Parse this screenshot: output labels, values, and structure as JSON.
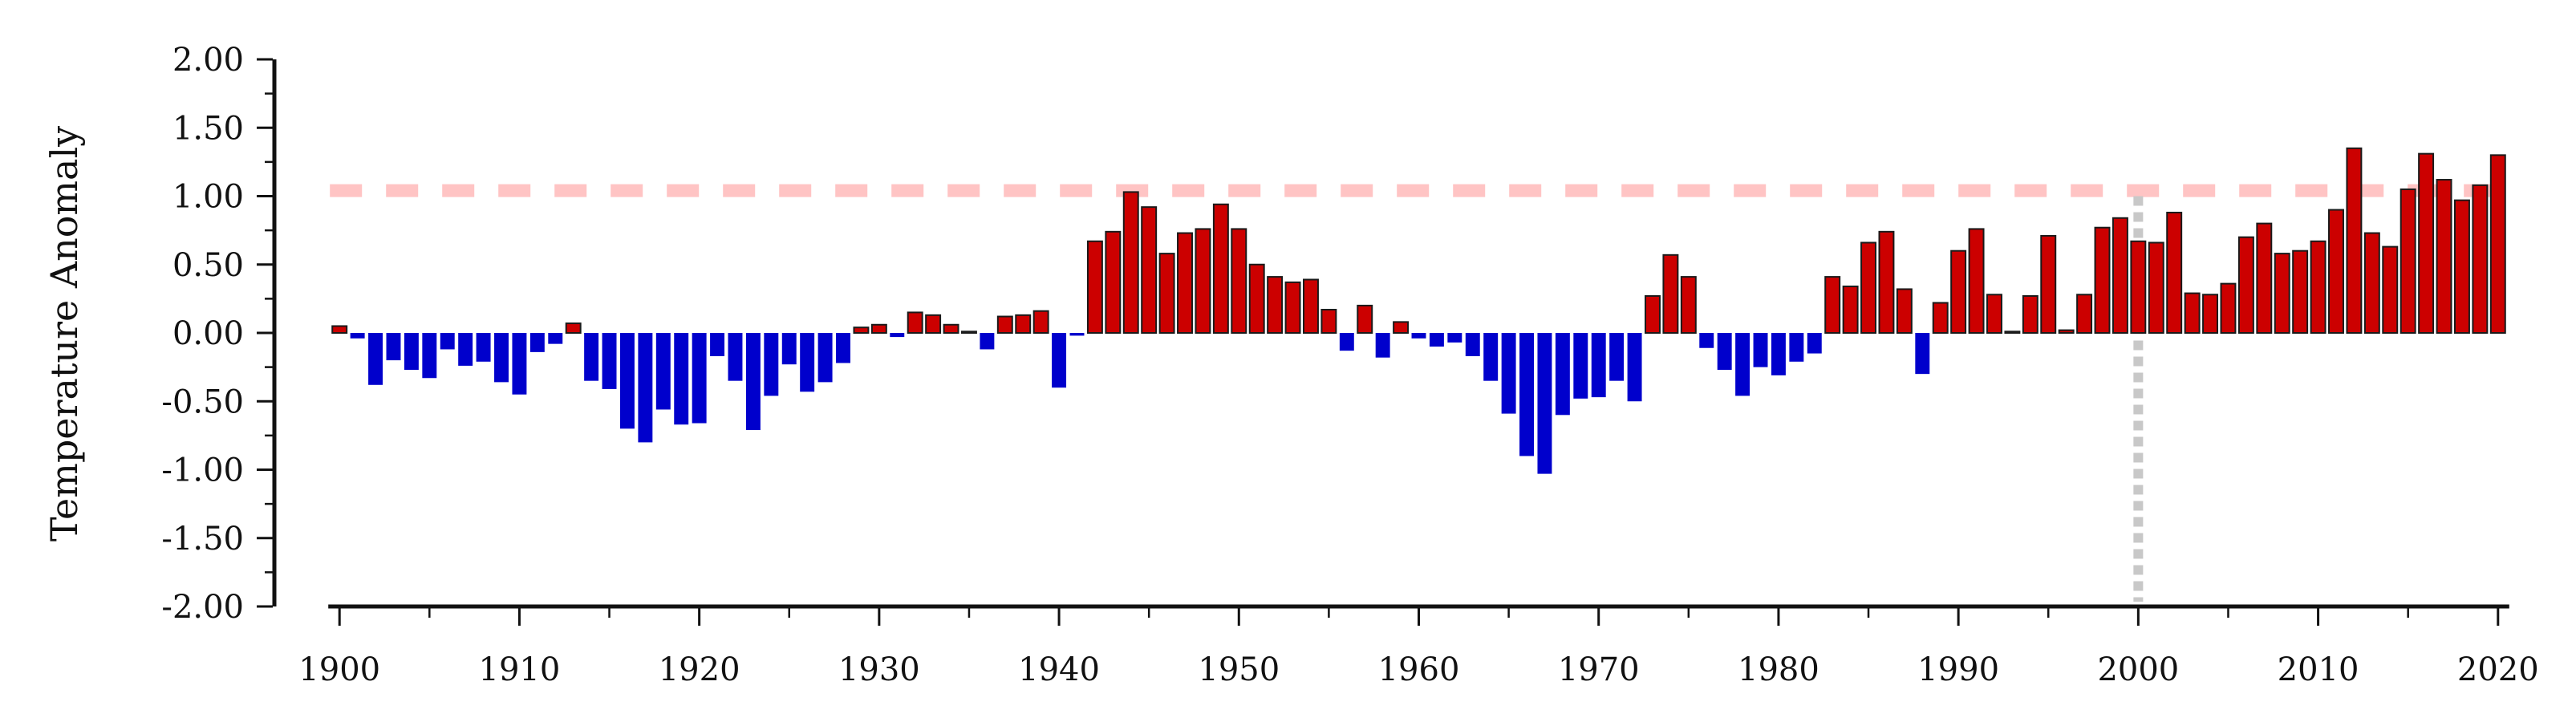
{
  "chart_data": {
    "type": "bar",
    "title": "",
    "xlabel": "",
    "ylabel": "Temperature Anomaly",
    "ylim": [
      -2.0,
      2.0
    ],
    "xlim": [
      1899.5,
      2020.5
    ],
    "yticks": [
      "2.00",
      "1.50",
      "1.00",
      "0.50",
      "0.00",
      "-0.50",
      "-1.00",
      "-1.50",
      "-2.00"
    ],
    "ytick_values": [
      2.0,
      1.5,
      1.0,
      0.5,
      0.0,
      -0.5,
      -1.0,
      -1.5,
      -2.0
    ],
    "xticks": [
      "1900",
      "1910",
      "1920",
      "1930",
      "1940",
      "1950",
      "1960",
      "1970",
      "1980",
      "1990",
      "2000",
      "2010",
      "2020"
    ],
    "xtick_values": [
      1900,
      1910,
      1920,
      1930,
      1940,
      1950,
      1960,
      1970,
      1980,
      1990,
      2000,
      2010,
      2020
    ],
    "grid": false,
    "reference_line": {
      "y": 1.04,
      "style": "dashed",
      "color": "#ffc4c4"
    },
    "reference_vline": {
      "x": 2000,
      "style": "dotted",
      "color": "#c8c8c8"
    },
    "colors": {
      "positive": "#cc0000",
      "negative": "#0000cc",
      "bar_edge": "#1a1a1a",
      "axis": "#111111"
    },
    "x": [
      1900,
      1901,
      1902,
      1903,
      1904,
      1905,
      1906,
      1907,
      1908,
      1909,
      1910,
      1911,
      1912,
      1913,
      1914,
      1915,
      1916,
      1917,
      1918,
      1919,
      1920,
      1921,
      1922,
      1923,
      1924,
      1925,
      1926,
      1927,
      1928,
      1929,
      1930,
      1931,
      1932,
      1933,
      1934,
      1935,
      1936,
      1937,
      1938,
      1939,
      1940,
      1941,
      1942,
      1943,
      1944,
      1945,
      1946,
      1947,
      1948,
      1949,
      1950,
      1951,
      1952,
      1953,
      1954,
      1955,
      1956,
      1957,
      1958,
      1959,
      1960,
      1961,
      1962,
      1963,
      1964,
      1965,
      1966,
      1967,
      1968,
      1969,
      1970,
      1971,
      1972,
      1973,
      1974,
      1975,
      1976,
      1977,
      1978,
      1979,
      1980,
      1981,
      1982,
      1983,
      1984,
      1985,
      1986,
      1987,
      1988,
      1989,
      1990,
      1991,
      1992,
      1993,
      1994,
      1995,
      1996,
      1997,
      1998,
      1999,
      2000,
      2001,
      2002,
      2003,
      2004,
      2005,
      2006,
      2007,
      2008,
      2009,
      2010,
      2011,
      2012,
      2013,
      2014,
      2015,
      2016,
      2017,
      2018,
      2019,
      2020
    ],
    "values": [
      0.05,
      -0.04,
      -0.38,
      -0.2,
      -0.27,
      -0.33,
      -0.12,
      -0.24,
      -0.21,
      -0.36,
      -0.45,
      -0.14,
      -0.08,
      0.07,
      -0.35,
      -0.41,
      -0.7,
      -0.8,
      -0.56,
      -0.67,
      -0.66,
      -0.17,
      -0.35,
      -0.71,
      -0.46,
      -0.23,
      -0.43,
      -0.36,
      -0.22,
      0.04,
      0.06,
      -0.03,
      0.15,
      0.13,
      0.06,
      0.01,
      -0.12,
      0.12,
      0.13,
      0.16,
      -0.4,
      -0.02,
      0.67,
      0.74,
      1.03,
      0.92,
      0.58,
      0.73,
      0.76,
      0.94,
      0.76,
      0.5,
      0.41,
      0.37,
      0.39,
      0.17,
      -0.13,
      0.2,
      -0.18,
      0.08,
      -0.04,
      -0.1,
      -0.07,
      -0.17,
      -0.35,
      -0.59,
      -0.9,
      -1.03,
      -0.6,
      -0.48,
      -0.47,
      -0.35,
      -0.5,
      0.27,
      0.57,
      0.41,
      -0.11,
      -0.27,
      -0.46,
      -0.25,
      -0.31,
      -0.21,
      -0.15,
      0.41,
      0.34,
      0.66,
      0.74,
      0.32,
      -0.3,
      0.22,
      0.6,
      0.76,
      0.28,
      0.01,
      0.27,
      0.71,
      0.02,
      0.28,
      0.77,
      0.84,
      0.67,
      0.66,
      0.88,
      0.29,
      0.28,
      0.36,
      0.7,
      0.8,
      0.58,
      0.6,
      0.67,
      0.9,
      1.35,
      0.73,
      0.63,
      1.05,
      1.31,
      1.12,
      0.97,
      1.08,
      1.3
    ]
  }
}
